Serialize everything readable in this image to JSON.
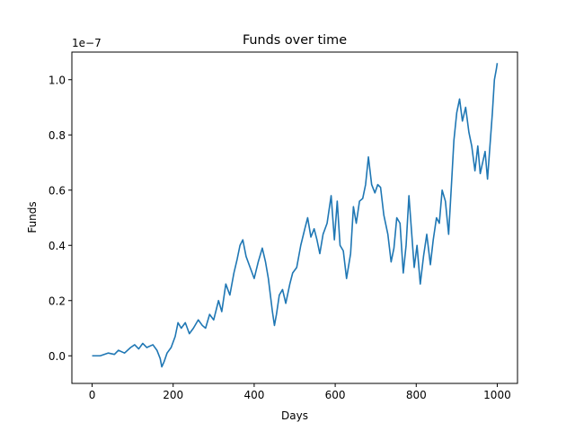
{
  "chart_data": {
    "type": "line",
    "title": "Funds over time",
    "xlabel": "Days",
    "ylabel": "Funds",
    "y_offset_text": "1e−7",
    "xlim": [
      -50,
      1050
    ],
    "ylim": [
      -1.0,
      11.0
    ],
    "y_scale_note_exponent": -7,
    "x_ticks": [
      0,
      200,
      400,
      600,
      800,
      1000
    ],
    "x_tick_labels": [
      "0",
      "200",
      "400",
      "600",
      "800",
      "1000"
    ],
    "y_ticks": [
      0.0,
      2.0,
      4.0,
      6.0,
      8.0,
      10.0
    ],
    "y_tick_labels": [
      "0.0",
      "0.2",
      "0.4",
      "0.6",
      "0.8",
      "1.0"
    ],
    "grid": false,
    "line_color": "#1f77b4",
    "series": [
      {
        "x": [
          0,
          20,
          40,
          55,
          65,
          80,
          95,
          105,
          115,
          125,
          135,
          150,
          160,
          168,
          172,
          178,
          185,
          195,
          205,
          212,
          220,
          230,
          240,
          250,
          262,
          272,
          280,
          290,
          300,
          312,
          320,
          330,
          340,
          350,
          358,
          365,
          372,
          380,
          390,
          400,
          410,
          420,
          428,
          435,
          440,
          445,
          450,
          455,
          462,
          470,
          478,
          488,
          495,
          505,
          515,
          525,
          532,
          540,
          548,
          555,
          562,
          570,
          580,
          590,
          598,
          605,
          612,
          620,
          628,
          638,
          645,
          652,
          660,
          668,
          675,
          682,
          690,
          698,
          705,
          712,
          720,
          730,
          738,
          745,
          752,
          760,
          768,
          775,
          782,
          788,
          795,
          802,
          810,
          818,
          826,
          835,
          842,
          850,
          857,
          864,
          872,
          880,
          887,
          893,
          900,
          907,
          914,
          922,
          930,
          937,
          945,
          952,
          958,
          964,
          970,
          976,
          982,
          988,
          993,
          998,
          1000
        ],
        "values": [
          0.0,
          0.0,
          0.1,
          0.05,
          0.2,
          0.1,
          0.3,
          0.4,
          0.25,
          0.45,
          0.3,
          0.4,
          0.2,
          -0.1,
          -0.4,
          -0.2,
          0.1,
          0.3,
          0.7,
          1.2,
          1.0,
          1.2,
          0.8,
          1.0,
          1.3,
          1.1,
          1.0,
          1.5,
          1.3,
          2.0,
          1.6,
          2.6,
          2.2,
          3.0,
          3.5,
          4.0,
          4.2,
          3.6,
          3.2,
          2.8,
          3.4,
          3.9,
          3.4,
          2.8,
          2.2,
          1.6,
          1.1,
          1.5,
          2.2,
          2.4,
          1.9,
          2.6,
          3.0,
          3.2,
          4.0,
          4.6,
          5.0,
          4.3,
          4.6,
          4.2,
          3.7,
          4.4,
          4.8,
          5.8,
          4.2,
          5.6,
          4.0,
          3.8,
          2.8,
          3.7,
          5.4,
          4.8,
          5.6,
          5.7,
          6.2,
          7.2,
          6.2,
          5.9,
          6.2,
          6.1,
          5.1,
          4.4,
          3.4,
          3.9,
          5.0,
          4.8,
          3.0,
          4.0,
          5.8,
          4.6,
          3.2,
          4.0,
          2.6,
          3.6,
          4.4,
          3.3,
          4.2,
          5.0,
          4.8,
          6.0,
          5.6,
          4.4,
          6.2,
          7.8,
          8.8,
          9.3,
          8.5,
          9.0,
          8.1,
          7.6,
          6.7,
          7.6,
          6.6,
          7.0,
          7.4,
          6.4,
          7.6,
          8.8,
          10.0,
          10.4,
          10.6
        ]
      }
    ]
  }
}
